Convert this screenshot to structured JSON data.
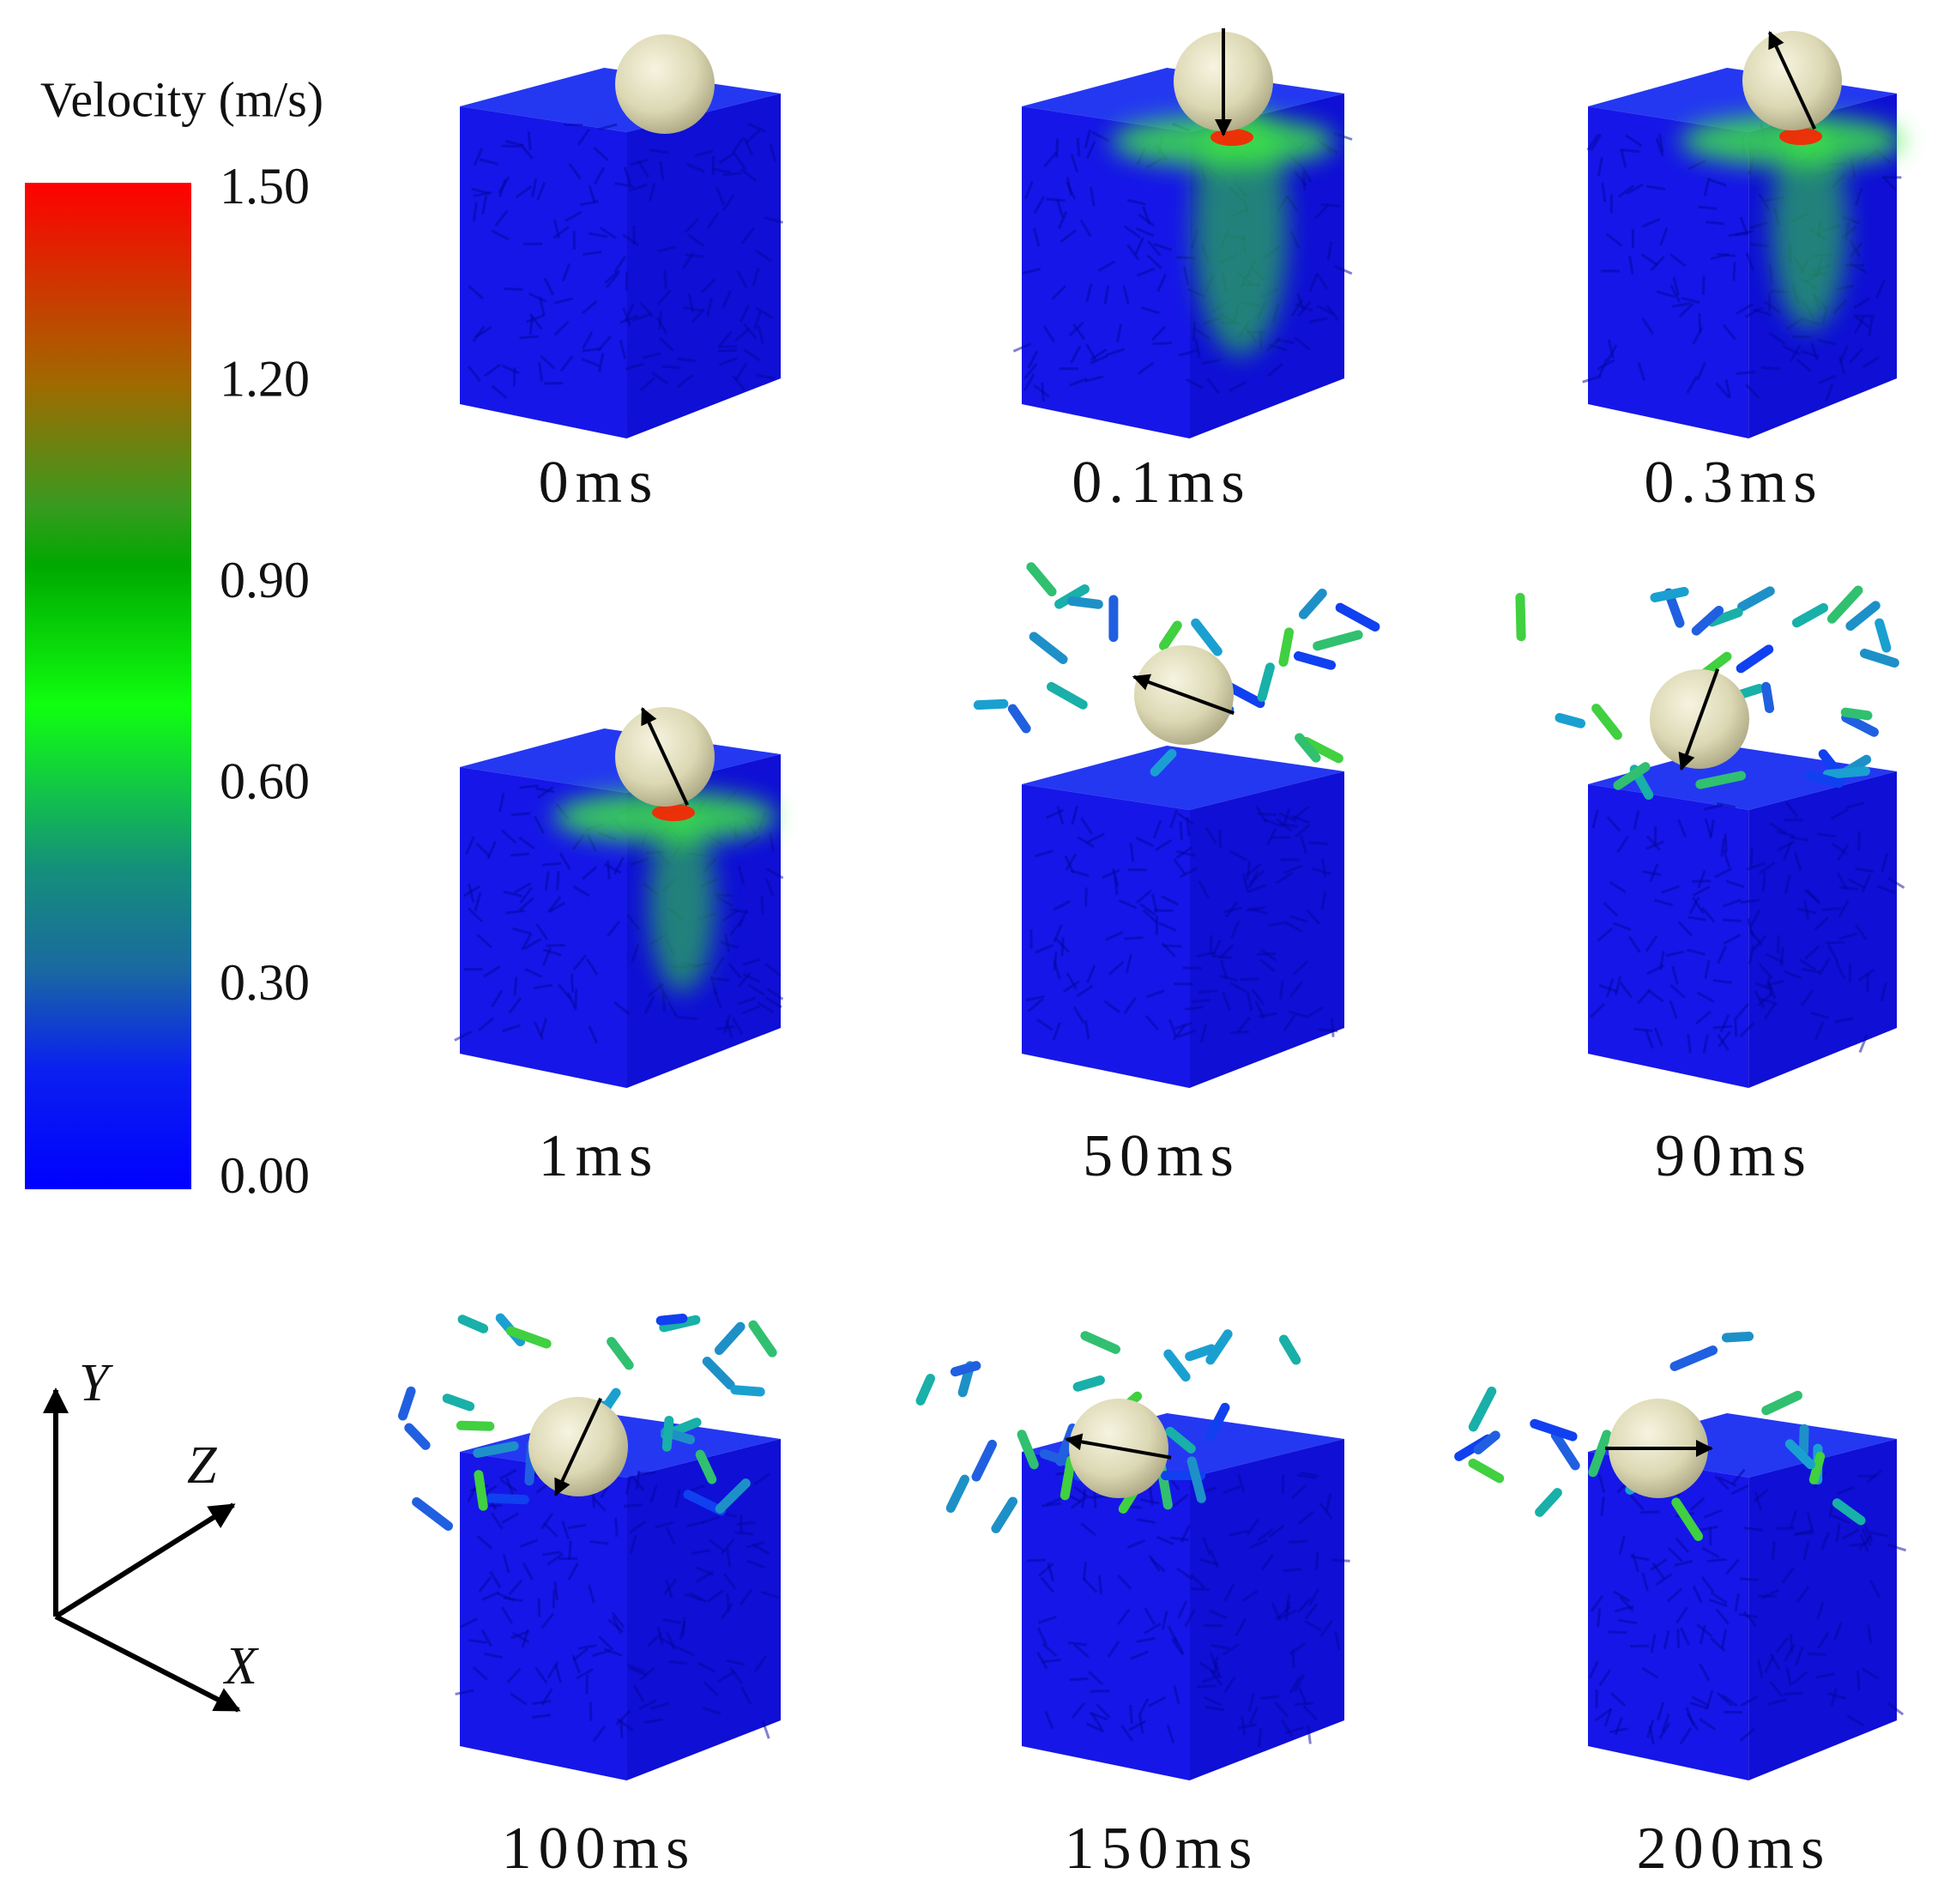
{
  "colorbar": {
    "title": "Velocity (m/s)",
    "lim": [
      0,
      1.5
    ],
    "ticks": [
      {
        "value": 1.5,
        "label": "1.50"
      },
      {
        "value": 1.2,
        "label": "1.20"
      },
      {
        "value": 0.9,
        "label": "0.90"
      },
      {
        "value": 0.6,
        "label": "0.60"
      },
      {
        "value": 0.3,
        "label": "0.30"
      },
      {
        "value": 0,
        "label": "0.00"
      }
    ]
  },
  "panels": [
    {
      "label": "0ms"
    },
    {
      "label": "0.1ms"
    },
    {
      "label": "0.3ms"
    },
    {
      "label": "1ms"
    },
    {
      "label": "50ms"
    },
    {
      "label": "90ms"
    },
    {
      "label": "100ms"
    },
    {
      "label": "150ms"
    },
    {
      "label": "200ms"
    }
  ],
  "axes": {
    "y": "Y",
    "z": "Z",
    "x": "X"
  }
}
